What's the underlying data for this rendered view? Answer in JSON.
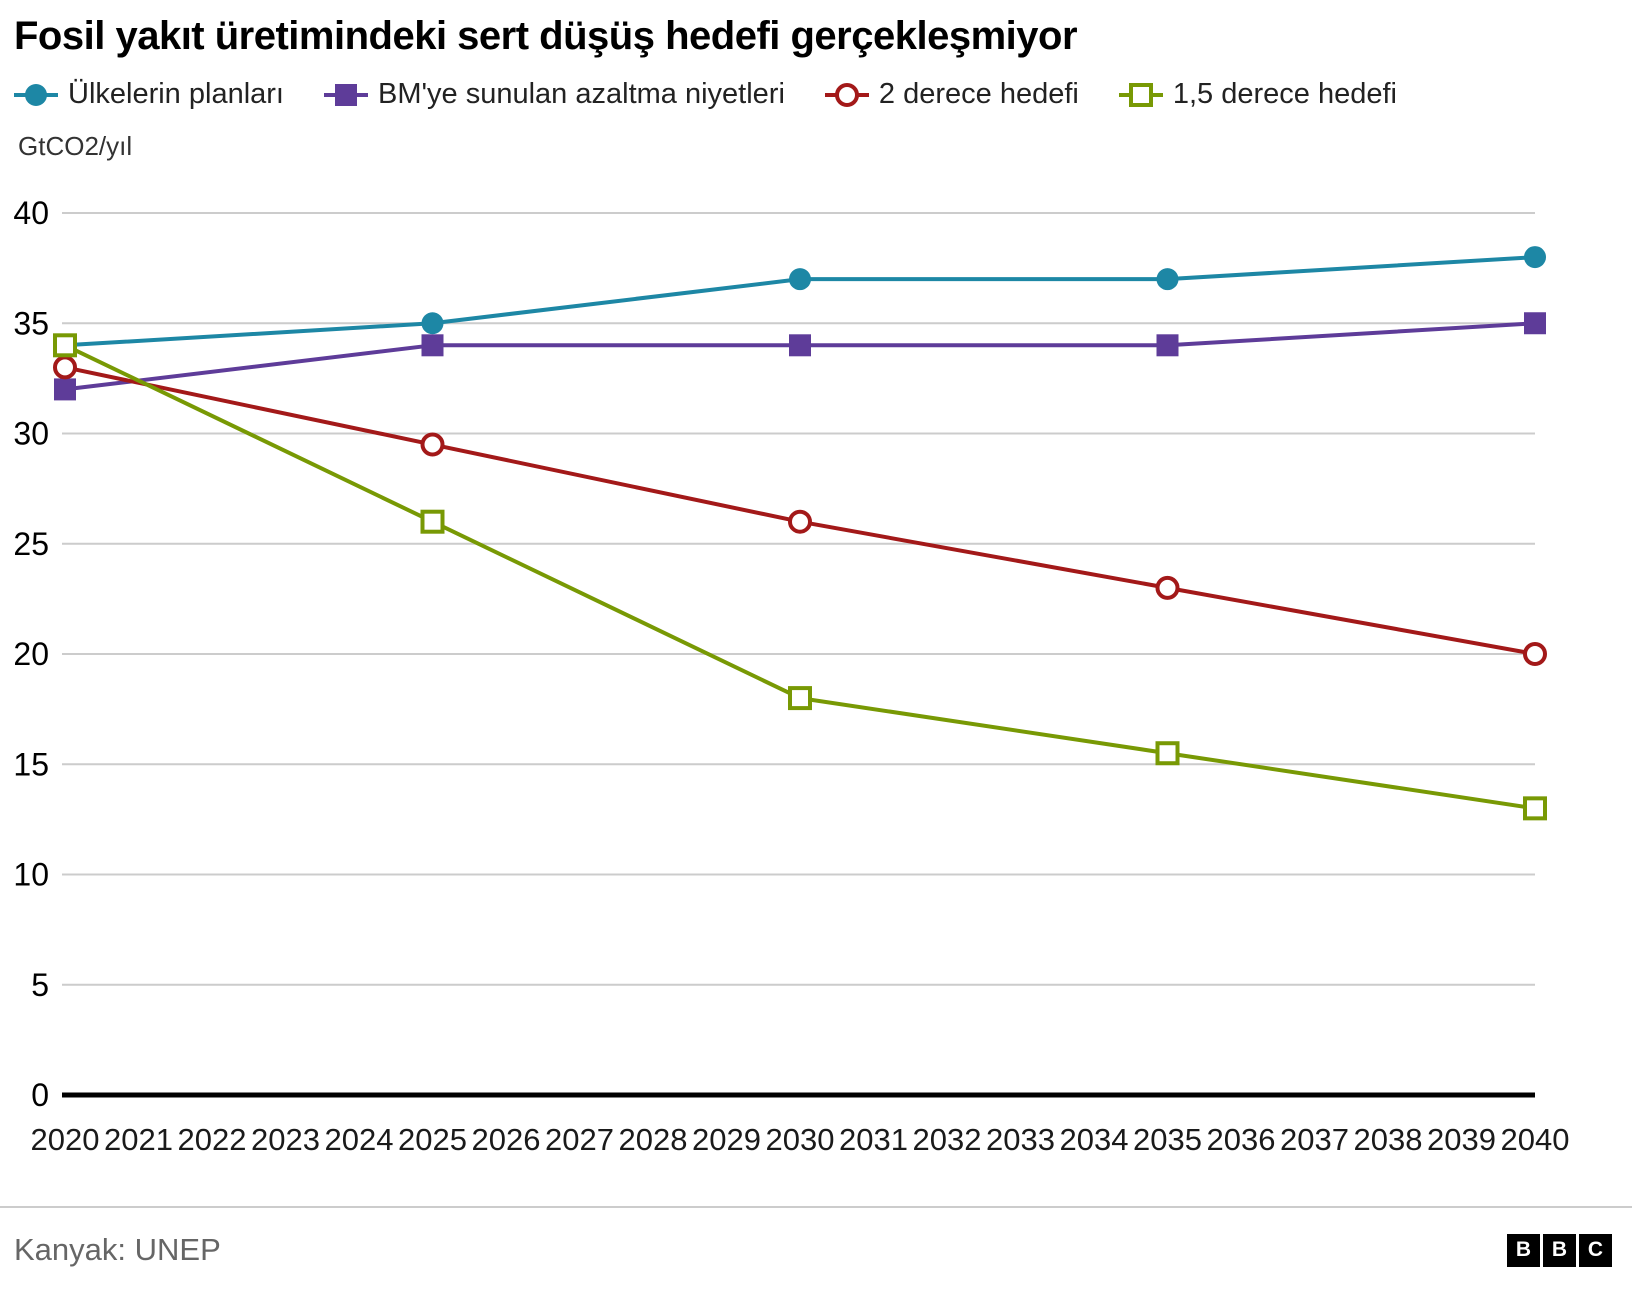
{
  "header": {
    "title": "Fosil yakıt üretimindeki sert düşüş hedefi gerçekleşmiyor"
  },
  "chart_data": {
    "type": "line",
    "title": "Fosil yakıt üretimindeki sert düşüş hedefi gerçekleşmiyor",
    "ylabel": "GtCO2/yıl",
    "xlabel": "",
    "ylim": [
      0,
      40
    ],
    "y_ticks": [
      0,
      5,
      10,
      15,
      20,
      25,
      30,
      35,
      40
    ],
    "x_ticks": [
      2020,
      2021,
      2022,
      2023,
      2024,
      2025,
      2026,
      2027,
      2028,
      2029,
      2030,
      2031,
      2032,
      2033,
      2034,
      2035,
      2036,
      2037,
      2038,
      2039,
      2040
    ],
    "x": [
      2020,
      2025,
      2030,
      2035,
      2040
    ],
    "grid": true,
    "legend_position": "top",
    "series": [
      {
        "name": "Ülkelerin planları",
        "color": "#1d87a5",
        "marker": "circle-filled",
        "values": [
          34,
          35,
          37,
          37,
          38
        ]
      },
      {
        "name": "BM'ye sunulan azaltma niyetleri",
        "color": "#5e3c99",
        "marker": "square-filled",
        "values": [
          32,
          34,
          34,
          34,
          35
        ]
      },
      {
        "name": "2 derece hedefi",
        "color": "#a31919",
        "marker": "circle-open",
        "values": [
          33,
          29.5,
          26,
          23,
          20
        ]
      },
      {
        "name": "1,5 derece hedefi",
        "color": "#789904",
        "marker": "square-open",
        "values": [
          34,
          26,
          18,
          15.5,
          13
        ]
      }
    ]
  },
  "footer": {
    "source": "Kanyak: UNEP",
    "logo_letters": [
      "B",
      "B",
      "C"
    ]
  }
}
